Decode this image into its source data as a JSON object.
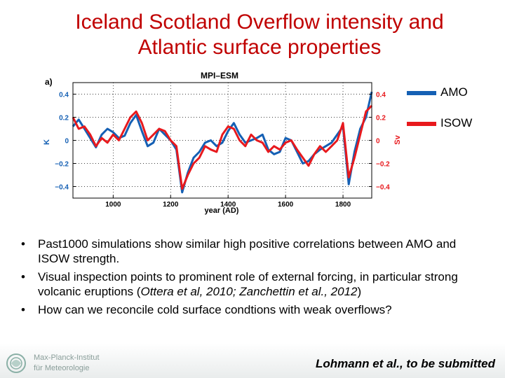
{
  "title_line1": "Iceland Scotland Overflow intensity and",
  "title_line2": "Atlantic surface properties",
  "legend": [
    {
      "label": "AMO",
      "color": "#1560b4"
    },
    {
      "label": "ISOW",
      "color": "#e8191d"
    }
  ],
  "chart_data": {
    "type": "line",
    "panel_label": "a)",
    "title": "MPI–ESM",
    "xlabel": "year (AD)",
    "ylabel_left": "K",
    "ylabel_right": "Sv",
    "xlim": [
      860,
      1900
    ],
    "ylim": [
      -0.5,
      0.5
    ],
    "x_ticks": [
      1000,
      1200,
      1400,
      1600,
      1800
    ],
    "y_ticks": [
      -0.4,
      -0.2,
      0,
      0.2,
      0.4
    ],
    "y_tick_labels": [
      "−0.4",
      "−0.2",
      "0",
      "0.2",
      "0.4"
    ],
    "grid": true,
    "series": [
      {
        "name": "AMO",
        "color": "#1560b4",
        "x": [
          860,
          880,
          900,
          920,
          940,
          960,
          980,
          1000,
          1020,
          1040,
          1060,
          1080,
          1100,
          1120,
          1140,
          1160,
          1180,
          1200,
          1220,
          1240,
          1260,
          1280,
          1300,
          1320,
          1340,
          1360,
          1380,
          1400,
          1420,
          1440,
          1460,
          1480,
          1500,
          1520,
          1540,
          1560,
          1580,
          1600,
          1620,
          1640,
          1660,
          1680,
          1700,
          1720,
          1740,
          1760,
          1780,
          1800,
          1820,
          1840,
          1860,
          1880,
          1900
        ],
        "values": [
          0.12,
          0.18,
          0.1,
          0.02,
          -0.06,
          0.05,
          0.1,
          0.07,
          0.02,
          0.04,
          0.15,
          0.22,
          0.08,
          -0.05,
          -0.02,
          0.1,
          0.05,
          0.0,
          -0.08,
          -0.45,
          -0.28,
          -0.15,
          -0.1,
          -0.02,
          0.0,
          -0.05,
          -0.02,
          0.08,
          0.15,
          0.05,
          -0.02,
          0.0,
          0.02,
          0.05,
          -0.08,
          -0.12,
          -0.1,
          0.02,
          0.0,
          -0.1,
          -0.2,
          -0.18,
          -0.12,
          -0.08,
          -0.05,
          -0.02,
          0.05,
          0.12,
          -0.38,
          -0.1,
          0.1,
          0.2,
          0.42
        ]
      },
      {
        "name": "ISOW",
        "color": "#e8191d",
        "x": [
          860,
          880,
          900,
          920,
          940,
          960,
          980,
          1000,
          1020,
          1040,
          1060,
          1080,
          1100,
          1120,
          1140,
          1160,
          1180,
          1200,
          1220,
          1240,
          1260,
          1280,
          1300,
          1320,
          1340,
          1360,
          1380,
          1400,
          1420,
          1440,
          1460,
          1480,
          1500,
          1520,
          1540,
          1560,
          1580,
          1600,
          1620,
          1640,
          1660,
          1680,
          1700,
          1720,
          1740,
          1760,
          1780,
          1800,
          1820,
          1840,
          1860,
          1880,
          1900
        ],
        "values": [
          0.2,
          0.1,
          0.12,
          0.05,
          -0.05,
          0.02,
          -0.02,
          0.05,
          0.0,
          0.1,
          0.2,
          0.25,
          0.15,
          0.0,
          0.05,
          0.1,
          0.08,
          0.0,
          -0.05,
          -0.42,
          -0.3,
          -0.2,
          -0.15,
          -0.05,
          -0.08,
          -0.1,
          0.05,
          0.12,
          0.1,
          0.0,
          -0.05,
          0.05,
          0.0,
          -0.02,
          -0.1,
          -0.05,
          -0.08,
          -0.02,
          0.0,
          -0.08,
          -0.15,
          -0.22,
          -0.12,
          -0.05,
          -0.1,
          -0.05,
          0.0,
          0.15,
          -0.32,
          -0.15,
          0.05,
          0.25,
          0.3
        ]
      }
    ]
  },
  "bullets": [
    {
      "text": "Past1000 simulations show similar high positive correlations between AMO and ISOW strength."
    },
    {
      "text": "Visual inspection points to prominent role of external forcing, in particular strong volcanic eruptions (",
      "cite": "Ottera et al, 2010; Zanchettin et al., 2012",
      "tail": ")"
    },
    {
      "text": "How can we reconcile cold surface condtions with weak overflows?"
    }
  ],
  "footer": {
    "institute_line1": "Max-Planck-Institut",
    "institute_line2": "für Meteorologie",
    "author": "Lohmann et al., to be submitted"
  }
}
